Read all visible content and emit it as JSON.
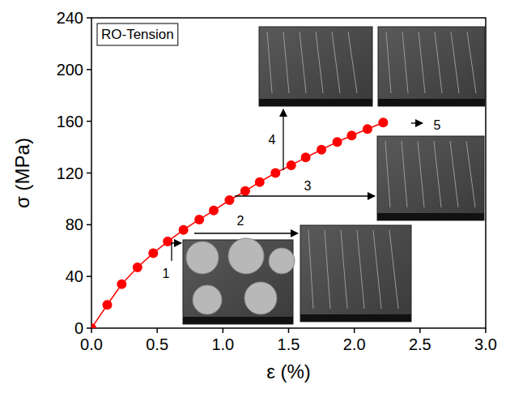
{
  "chart_data": {
    "type": "line",
    "title": "RO-Tension",
    "x_label": "ε (%)",
    "y_label": "σ (MPa)",
    "x": [
      0,
      0.12,
      0.23,
      0.35,
      0.47,
      0.58,
      0.7,
      0.82,
      0.93,
      1.05,
      1.17,
      1.28,
      1.4,
      1.52,
      1.63,
      1.75,
      1.87,
      1.98,
      2.1,
      2.22
    ],
    "values": [
      0,
      18,
      34,
      47,
      58,
      67,
      76,
      84,
      91,
      99,
      106,
      113,
      120,
      126,
      132,
      138,
      144,
      149,
      154,
      159
    ],
    "color": "#ff0000",
    "marker": "circle",
    "line_style": "solid",
    "xlim": [
      0,
      3
    ],
    "xticks": [
      {
        "value": 0,
        "label": "0.0"
      },
      {
        "value": 0.5,
        "label": "0.5"
      },
      {
        "value": 1,
        "label": "1.0"
      },
      {
        "value": 1.5,
        "label": "1.5"
      },
      {
        "value": 2,
        "label": "2.0"
      },
      {
        "value": 2.5,
        "label": "2.5"
      },
      {
        "value": 3,
        "label": "3.0"
      }
    ],
    "ylim": [
      0,
      240
    ],
    "yticks": [
      0,
      40,
      80,
      120,
      160,
      200,
      240
    ],
    "grid": false,
    "annotations": [
      "1",
      "2",
      "3",
      "4",
      "5"
    ]
  }
}
